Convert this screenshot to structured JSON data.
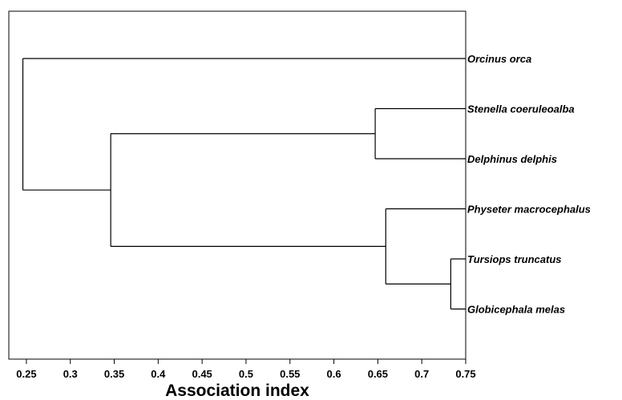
{
  "chart_data": {
    "type": "dendrogram",
    "xlabel": "Association index",
    "xlim": [
      0.23,
      0.75
    ],
    "xticks": [
      "0.25",
      "0.3",
      "0.35",
      "0.4",
      "0.45",
      "0.5",
      "0.55",
      "0.6",
      "0.65",
      "0.7",
      "0.75"
    ],
    "leaves": [
      "Orcinus orca",
      "Stenella coeruleoalba",
      "Delphinus delphis",
      "Physeter macrocephalus",
      "Tursiops truncatus",
      "Globicephala melas"
    ],
    "merges": [
      {
        "id": "n1",
        "children": [
          "Stenella coeruleoalba",
          "Delphinus delphis"
        ],
        "height": 0.647
      },
      {
        "id": "n2",
        "children": [
          "Tursiops truncatus",
          "Globicephala melas"
        ],
        "height": 0.733
      },
      {
        "id": "n3",
        "children": [
          "Physeter macrocephalus",
          "n2"
        ],
        "height": 0.659
      },
      {
        "id": "n4",
        "children": [
          "n1",
          "n3"
        ],
        "height": 0.346
      },
      {
        "id": "n5",
        "children": [
          "Orcinus orca",
          "n4"
        ],
        "height": 0.246
      }
    ]
  }
}
